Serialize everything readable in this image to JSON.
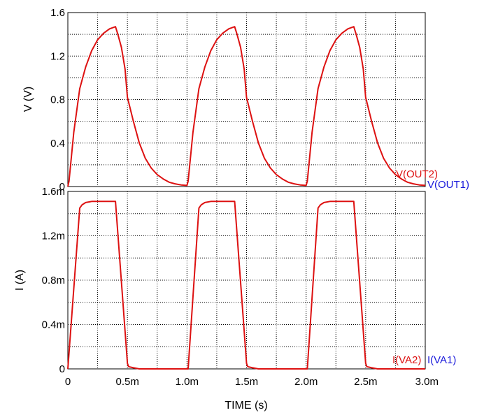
{
  "colors": {
    "red": "#dd1111",
    "blue": "#1a1adb",
    "grid": "#000000",
    "frame": "#000000"
  },
  "chart_data": [
    {
      "type": "line",
      "ylabel": "V  (V)",
      "y_tick_labels": [
        "0",
        "0.4",
        "0.8",
        "1.2",
        "1.6"
      ],
      "ylim": [
        0,
        1.6
      ],
      "xlim": [
        0,
        3.0
      ],
      "x_unit": "ms",
      "grid": true,
      "series": [
        {
          "name": "V(OUT2)",
          "color": "#dd1111",
          "x": [
            0,
            0.01,
            0.05,
            0.1,
            0.15,
            0.2,
            0.25,
            0.3,
            0.35,
            0.4,
            0.42,
            0.45,
            0.48,
            0.5,
            0.55,
            0.6,
            0.65,
            0.7,
            0.75,
            0.8,
            0.85,
            0.9,
            0.95,
            1.0,
            1.01,
            1.05,
            1.1,
            1.15,
            1.2,
            1.25,
            1.3,
            1.35,
            1.4,
            1.42,
            1.45,
            1.48,
            1.5,
            1.55,
            1.6,
            1.65,
            1.7,
            1.75,
            1.8,
            1.85,
            1.9,
            1.95,
            2.0,
            2.01,
            2.05,
            2.1,
            2.15,
            2.2,
            2.25,
            2.3,
            2.35,
            2.4,
            2.42,
            2.45,
            2.48,
            2.5,
            2.55,
            2.6,
            2.65,
            2.7,
            2.75,
            2.8,
            2.85,
            2.9,
            2.95,
            3.0
          ],
          "y": [
            0,
            0.05,
            0.5,
            0.9,
            1.1,
            1.25,
            1.35,
            1.41,
            1.45,
            1.47,
            1.4,
            1.28,
            1.08,
            0.82,
            0.6,
            0.4,
            0.26,
            0.17,
            0.11,
            0.07,
            0.04,
            0.025,
            0.015,
            0.01,
            0.05,
            0.5,
            0.9,
            1.1,
            1.25,
            1.35,
            1.41,
            1.45,
            1.47,
            1.4,
            1.28,
            1.08,
            0.82,
            0.6,
            0.4,
            0.26,
            0.17,
            0.11,
            0.07,
            0.04,
            0.025,
            0.015,
            0.01,
            0.05,
            0.5,
            0.9,
            1.1,
            1.25,
            1.35,
            1.41,
            1.45,
            1.47,
            1.4,
            1.28,
            1.08,
            0.82,
            0.6,
            0.4,
            0.26,
            0.17,
            0.11,
            0.07,
            0.04,
            0.025,
            0.015,
            0.01
          ]
        },
        {
          "name": "V(OUT1)",
          "color": "#1a1adb",
          "x": [],
          "y": []
        }
      ]
    },
    {
      "type": "line",
      "ylabel": "I  (A)",
      "y_tick_labels": [
        "0",
        "0.4m",
        "0.8m",
        "1.2m",
        "1.6m"
      ],
      "ylim": [
        0,
        1.6
      ],
      "y_unit": "mA",
      "xlim": [
        0,
        3.0
      ],
      "x_unit": "ms",
      "x_tick_labels": [
        "0",
        "0.5m",
        "1.0m",
        "1.5m",
        "2.0m",
        "2.5m",
        "3.0m"
      ],
      "xlabel": "TIME  (s)",
      "grid": true,
      "series": [
        {
          "name": "I(VA2)",
          "color": "#dd1111",
          "x": [
            0,
            0.1,
            0.12,
            0.15,
            0.2,
            0.3,
            0.4,
            0.5,
            0.51,
            0.55,
            0.6,
            1.0,
            1.01,
            1.1,
            1.12,
            1.15,
            1.2,
            1.3,
            1.4,
            1.5,
            1.51,
            1.55,
            1.6,
            2.0,
            2.01,
            2.1,
            2.12,
            2.15,
            2.2,
            2.3,
            2.4,
            2.5,
            2.51,
            2.55,
            2.6,
            3.0
          ],
          "y": [
            0,
            1.45,
            1.48,
            1.5,
            1.51,
            1.51,
            1.51,
            0.05,
            0.02,
            0.01,
            0,
            0,
            0,
            1.45,
            1.48,
            1.5,
            1.51,
            1.51,
            1.51,
            0.05,
            0.02,
            0.01,
            0,
            0,
            0,
            1.45,
            1.48,
            1.5,
            1.51,
            1.51,
            1.51,
            0.05,
            0.02,
            0.01,
            0,
            0
          ]
        },
        {
          "name": "I(VA1)",
          "color": "#1a1adb",
          "x": [],
          "y": []
        }
      ]
    }
  ]
}
